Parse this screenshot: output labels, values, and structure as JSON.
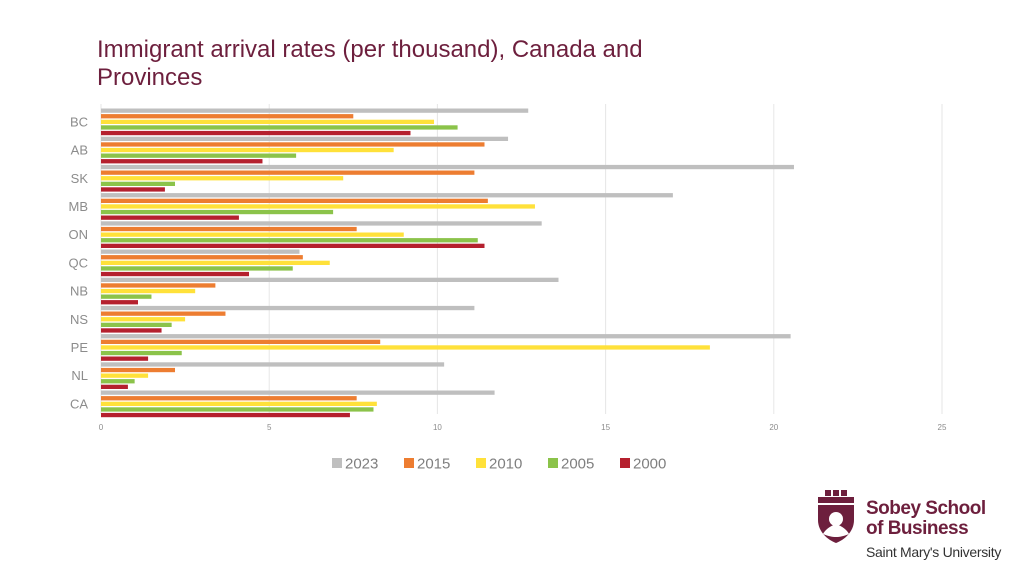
{
  "page": {
    "title": "Immigrant arrival rates (per thousand), Canada and Provinces"
  },
  "logo": {
    "line1": "Sobey School",
    "line2": "of Business",
    "line3": "Saint Mary's University",
    "colors": {
      "primary": "#6d1f3d",
      "text": "#333333"
    }
  },
  "chart_data": {
    "type": "bar",
    "orientation": "horizontal",
    "title": "Immigrant arrival rates (per thousand), Canada and Provinces",
    "categories": [
      "BC",
      "AB",
      "SK",
      "MB",
      "ON",
      "QC",
      "NB",
      "NS",
      "PE",
      "NL",
      "CA"
    ],
    "series": [
      {
        "name": "2023",
        "color": "#bfbfbf",
        "values": [
          12.7,
          12.1,
          20.6,
          17.0,
          13.1,
          5.9,
          13.6,
          11.1,
          20.5,
          10.2,
          11.7
        ]
      },
      {
        "name": "2015",
        "color": "#ed7d31",
        "values": [
          7.5,
          11.4,
          11.1,
          11.5,
          7.6,
          6.0,
          3.4,
          3.7,
          8.3,
          2.2,
          7.6
        ]
      },
      {
        "name": "2010",
        "color": "#ffe13a",
        "values": [
          9.9,
          8.7,
          7.2,
          12.9,
          9.0,
          6.8,
          2.8,
          2.5,
          18.1,
          1.4,
          8.2
        ]
      },
      {
        "name": "2005",
        "color": "#8bc34a",
        "values": [
          10.6,
          5.8,
          2.2,
          6.9,
          11.2,
          5.7,
          1.5,
          2.1,
          2.4,
          1.0,
          8.1
        ]
      },
      {
        "name": "2000",
        "color": "#b5202e",
        "values": [
          9.2,
          4.8,
          1.9,
          4.1,
          11.4,
          4.4,
          1.1,
          1.8,
          1.4,
          0.8,
          7.4
        ]
      }
    ],
    "xlim": [
      0,
      25
    ],
    "x_ticks": [
      "0",
      "5",
      "10",
      "15",
      "20",
      "25"
    ],
    "grid": true,
    "legend_position": "bottom"
  }
}
